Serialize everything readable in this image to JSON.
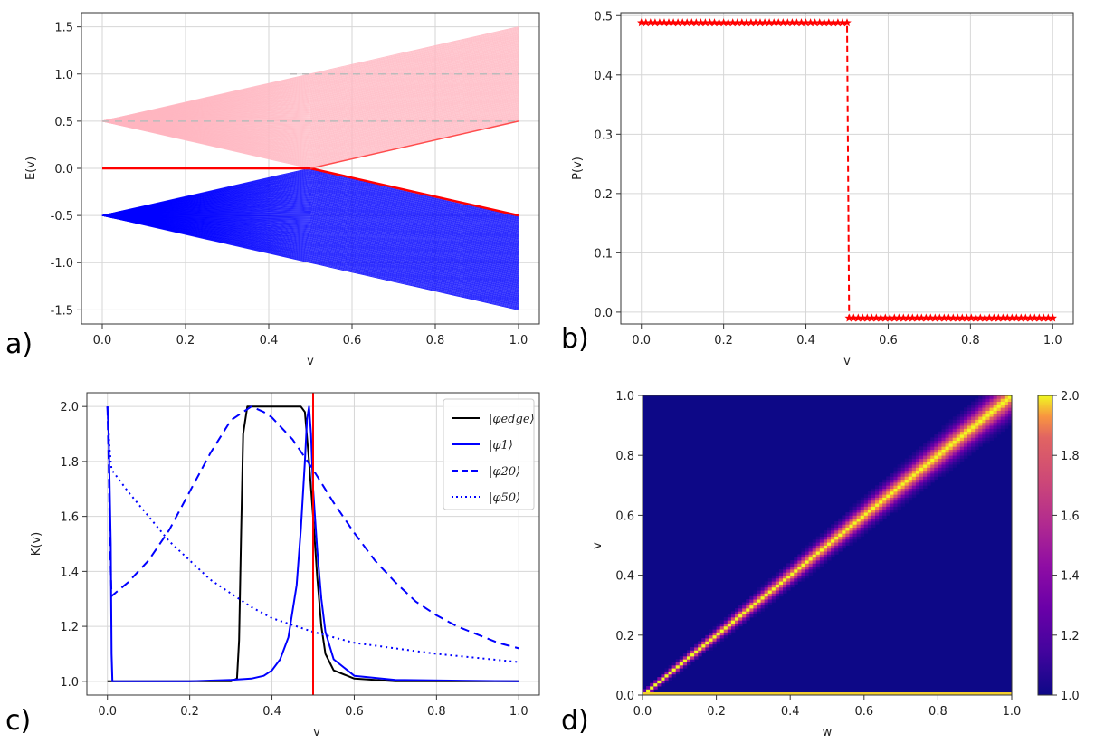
{
  "chart_data": [
    {
      "panel": "a)",
      "type": "line",
      "xlabel": "v",
      "ylabel": "E(v)",
      "xlim": [
        -0.05,
        1.05
      ],
      "ylim": [
        -1.65,
        1.65
      ],
      "xticks": [
        "0.0",
        "0.2",
        "0.4",
        "0.6",
        "0.8",
        "1.0"
      ],
      "yticks": [
        "-1.5",
        "-1.0",
        "-0.5",
        "0.0",
        "0.5",
        "1.0",
        "1.5"
      ],
      "grid": true,
      "series": [
        {
          "name": "upper band (pink)",
          "color": "#ffb6c1",
          "description": "bands spanning from 0.5 at v=0 to between 0.5 and 1.5 at v=1"
        },
        {
          "name": "lower band (blue)",
          "color": "#0000ff",
          "description": "bands spanning from -0.5 at v=0 to between -0.5 and -1.5 at v=1"
        },
        {
          "name": "edge state",
          "color": "#ff0000",
          "x": [
            0.0,
            0.5,
            1.0
          ],
          "y": [
            0.0,
            0.0,
            -0.5
          ]
        }
      ]
    },
    {
      "panel": "b)",
      "type": "line",
      "xlabel": "v",
      "ylabel": "P(v)",
      "xlim": [
        -0.05,
        1.05
      ],
      "ylim": [
        -0.02,
        0.505
      ],
      "xticks": [
        "0.0",
        "0.2",
        "0.4",
        "0.6",
        "0.8",
        "1.0"
      ],
      "yticks": [
        "0.0",
        "0.1",
        "0.2",
        "0.3",
        "0.4",
        "0.5"
      ],
      "grid": true,
      "series": [
        {
          "name": "P(v)",
          "color": "#ff0000",
          "style": "dashed with star markers",
          "segments": [
            {
              "x": [
                0.0,
                0.5
              ],
              "y": 0.488
            },
            {
              "x": [
                0.505,
                1.0
              ],
              "y": -0.01
            }
          ]
        }
      ]
    },
    {
      "panel": "c)",
      "type": "line",
      "xlabel": "v",
      "ylabel": "K(v)",
      "xlim": [
        -0.05,
        1.05
      ],
      "ylim": [
        0.95,
        2.05
      ],
      "xticks": [
        "0.0",
        "0.2",
        "0.4",
        "0.6",
        "0.8",
        "1.0"
      ],
      "yticks": [
        "1.0",
        "1.2",
        "1.4",
        "1.6",
        "1.8",
        "2.0"
      ],
      "grid": true,
      "vline": {
        "x": 0.5,
        "color": "#ff0000"
      },
      "legend": {
        "position": "top-right",
        "entries": [
          "|φedge⟩",
          "|φ1⟩",
          "|φ20⟩",
          "|φ50⟩"
        ]
      },
      "series": [
        {
          "name": "|φedge⟩",
          "color": "#000000",
          "style": "solid",
          "x": [
            0.0,
            0.3,
            0.315,
            0.32,
            0.325,
            0.33,
            0.34,
            0.35,
            0.45,
            0.47,
            0.48,
            0.49,
            0.5,
            0.51,
            0.52,
            0.53,
            0.55,
            0.6,
            0.65,
            0.7,
            1.0
          ],
          "y": [
            1.0,
            1.0,
            1.01,
            1.15,
            1.55,
            1.9,
            2.0,
            2.0,
            2.0,
            2.0,
            1.98,
            1.8,
            1.6,
            1.38,
            1.2,
            1.1,
            1.04,
            1.01,
            1.005,
            1.0,
            1.0
          ]
        },
        {
          "name": "|φ1⟩",
          "color": "#0000ff",
          "style": "solid",
          "x": [
            0.0,
            0.003,
            0.008,
            0.01,
            0.012,
            0.2,
            0.3,
            0.35,
            0.38,
            0.4,
            0.42,
            0.44,
            0.46,
            0.47,
            0.48,
            0.485,
            0.49,
            0.495,
            0.5,
            0.51,
            0.52,
            0.53,
            0.55,
            0.6,
            0.7,
            1.0
          ],
          "y": [
            2.0,
            1.9,
            1.5,
            1.1,
            1.0,
            1.0,
            1.005,
            1.01,
            1.02,
            1.04,
            1.08,
            1.16,
            1.35,
            1.55,
            1.8,
            1.95,
            2.0,
            1.9,
            1.7,
            1.48,
            1.3,
            1.18,
            1.08,
            1.02,
            1.005,
            1.0
          ]
        },
        {
          "name": "|φ20⟩",
          "color": "#0000ff",
          "style": "dashed",
          "x": [
            0.0,
            0.003,
            0.006,
            0.01,
            0.05,
            0.1,
            0.15,
            0.2,
            0.25,
            0.3,
            0.35,
            0.38,
            0.4,
            0.45,
            0.5,
            0.55,
            0.6,
            0.65,
            0.7,
            0.75,
            0.8,
            0.85,
            0.9,
            0.95,
            1.0
          ],
          "y": [
            2.0,
            1.8,
            1.5,
            1.31,
            1.36,
            1.44,
            1.55,
            1.69,
            1.83,
            1.95,
            2.0,
            1.98,
            1.96,
            1.88,
            1.77,
            1.65,
            1.54,
            1.44,
            1.36,
            1.29,
            1.24,
            1.2,
            1.17,
            1.14,
            1.12
          ]
        },
        {
          "name": "|φ50⟩",
          "color": "#0000ff",
          "style": "dotted",
          "x": [
            0.0,
            0.005,
            0.01,
            0.05,
            0.1,
            0.15,
            0.2,
            0.25,
            0.3,
            0.35,
            0.4,
            0.5,
            0.6,
            0.7,
            0.8,
            0.9,
            1.0
          ],
          "y": [
            2.0,
            1.85,
            1.77,
            1.69,
            1.6,
            1.51,
            1.44,
            1.37,
            1.32,
            1.27,
            1.23,
            1.18,
            1.14,
            1.12,
            1.1,
            1.085,
            1.07
          ]
        }
      ]
    },
    {
      "panel": "d)",
      "type": "heatmap",
      "xlabel": "w",
      "ylabel": "v",
      "xlim": [
        0,
        1
      ],
      "ylim": [
        0,
        1
      ],
      "xticks": [
        "0.0",
        "0.2",
        "0.4",
        "0.6",
        "0.8",
        "1.0"
      ],
      "yticks": [
        "0.0",
        "0.2",
        "0.4",
        "0.6",
        "0.8",
        "1.0"
      ],
      "colormap": "plasma",
      "colorbar": {
        "min": 1.0,
        "max": 2.0,
        "ticks": [
          "1.0",
          "1.2",
          "1.4",
          "1.6",
          "1.8",
          "2.0"
        ]
      },
      "description": "maximum K = 2.0 along diagonal v = w, background 1.0; bright bottom row at v = 0"
    }
  ]
}
